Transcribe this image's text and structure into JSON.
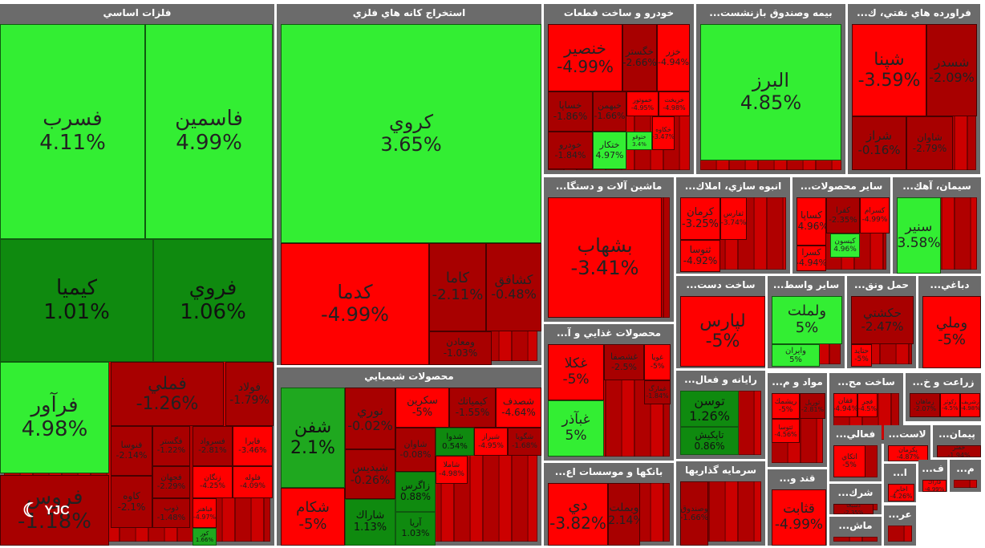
{
  "chart_data": {
    "type": "heatmap",
    "style": "treemap",
    "colors": {
      "strong_positive": "#33ee33",
      "mid_positive": "#1fa81f",
      "weak_positive": "#0f8a0f",
      "weak_negative": "#a80000",
      "strong_negative": "#ff0000",
      "sector_header": "#6b6b6b"
    },
    "sectors": [
      {
        "title": "فلزات اساسي",
        "stocks": [
          {
            "symbol": "فسرب",
            "change": "4.11%",
            "value": 4.11
          },
          {
            "symbol": "فاسمين",
            "change": "4.99%",
            "value": 4.99
          },
          {
            "symbol": "كيميا",
            "change": "1.01%",
            "value": 1.01
          },
          {
            "symbol": "فروي",
            "change": "1.06%",
            "value": 1.06
          },
          {
            "symbol": "فرآور",
            "change": "4.98%",
            "value": 4.98
          },
          {
            "symbol": "فملي",
            "change": "-1.26%",
            "value": -1.26
          },
          {
            "symbol": "فولاد",
            "change": "-1.79%",
            "value": -1.79
          },
          {
            "symbol": "فروس",
            "change": "-1.18%",
            "value": -1.18
          },
          {
            "symbol": "فنوسا",
            "change": "-2.14%",
            "value": -2.14
          },
          {
            "symbol": "فگستر",
            "change": "-1.22%",
            "value": -1.22
          },
          {
            "symbol": "فسرواد",
            "change": "-2.81%",
            "value": -2.81
          },
          {
            "symbol": "فايرا",
            "change": "-3.46%",
            "value": -3.46
          },
          {
            "symbol": "فجهان",
            "change": "-2.29%",
            "value": -2.29
          },
          {
            "symbol": "زنگان",
            "change": "-4.25%",
            "value": -4.25
          },
          {
            "symbol": "فلوله",
            "change": "-4.09%",
            "value": -4.09
          },
          {
            "symbol": "كاوه",
            "change": "-2.1%",
            "value": -2.1
          },
          {
            "symbol": "ذوب",
            "change": "-1.48%",
            "value": -1.48
          },
          {
            "symbol": "فباهنر",
            "change": "-4.97%",
            "value": -4.97
          },
          {
            "symbol": "كور",
            "change": "1.66%",
            "value": 1.66
          }
        ]
      },
      {
        "title": "استخراج كانه هاي فلزي",
        "stocks": [
          {
            "symbol": "كروي",
            "change": "3.65%",
            "value": 3.65
          },
          {
            "symbol": "كدما",
            "change": "-4.99%",
            "value": -4.99
          },
          {
            "symbol": "كاما",
            "change": "-2.11%",
            "value": -2.11
          },
          {
            "symbol": "كشافق",
            "change": "-0.48%",
            "value": -0.48
          },
          {
            "symbol": "ومعادن",
            "change": "-1.03%",
            "value": -1.03
          }
        ]
      },
      {
        "title": "محصولات شيميايي",
        "stocks": [
          {
            "symbol": "شفن",
            "change": "2.1%",
            "value": 2.1
          },
          {
            "symbol": "شكام",
            "change": "-5%",
            "value": -5
          },
          {
            "symbol": "نوري",
            "change": "-0.02%",
            "value": -0.02
          },
          {
            "symbol": "شپديس",
            "change": "-0.26%",
            "value": -0.26
          },
          {
            "symbol": "شاراك",
            "change": "1.13%",
            "value": 1.13
          },
          {
            "symbol": "سكرين",
            "change": "-5%",
            "value": -5
          },
          {
            "symbol": "كيمياتك",
            "change": "-1.55%",
            "value": -1.55
          },
          {
            "symbol": "شصدف",
            "change": "-4.64%",
            "value": -4.64
          },
          {
            "symbol": "شاوان",
            "change": "-0.08%",
            "value": -0.08
          },
          {
            "symbol": "شدوا",
            "change": "0.54%",
            "value": 0.54
          },
          {
            "symbol": "شيراز",
            "change": "-4.95%",
            "value": -4.95
          },
          {
            "symbol": "شگویا",
            "change": "-1.68%",
            "value": -1.68
          },
          {
            "symbol": "زاگرس",
            "change": "0.88%",
            "value": 0.88
          },
          {
            "symbol": "شاملا",
            "change": "-4.98%",
            "value": -4.98
          },
          {
            "symbol": "آريا",
            "change": "1.03%",
            "value": 1.03
          }
        ]
      },
      {
        "title": "خودرو و ساخت قطعات",
        "stocks": [
          {
            "symbol": "خنصير",
            "change": "-4.99%",
            "value": -4.99
          },
          {
            "symbol": "خگستر",
            "change": "-2.66%",
            "value": -2.66
          },
          {
            "symbol": "خزر",
            "change": "-4.94%",
            "value": -4.94
          },
          {
            "symbol": "خساپا",
            "change": "-1.86%",
            "value": -1.86
          },
          {
            "symbol": "خبهمن",
            "change": "-1.66%",
            "value": -1.66
          },
          {
            "symbol": "خموتور",
            "change": "-4.95%",
            "value": -4.95
          },
          {
            "symbol": "خريخت",
            "change": "-4.98%",
            "value": -4.98
          },
          {
            "symbol": "خودرو",
            "change": "-1.84%",
            "value": -1.84
          },
          {
            "symbol": "ختكار",
            "change": "4.97%",
            "value": 4.97
          },
          {
            "symbol": "ختوقو",
            "change": "3.4%",
            "value": 3.4
          },
          {
            "symbol": "خكاوه",
            "change": "-3.47%",
            "value": -3.47
          }
        ]
      },
      {
        "title": "بيمه وصندوق بازنشست...",
        "stocks": [
          {
            "symbol": "البرز",
            "change": "4.85%",
            "value": 4.85
          }
        ]
      },
      {
        "title": "فراورده هاي نفتي، ك...",
        "stocks": [
          {
            "symbol": "شپنا",
            "change": "-3.59%",
            "value": -3.59
          },
          {
            "symbol": "شسدر",
            "change": "-2.09%",
            "value": -2.09
          },
          {
            "symbol": "شراز",
            "change": "-0.16%",
            "value": -0.16
          },
          {
            "symbol": "شاوان",
            "change": "-2.79%",
            "value": -2.79
          }
        ]
      },
      {
        "title": "ماشين آلات و دستگا...",
        "stocks": [
          {
            "symbol": "بشهاب",
            "change": "-3.41%",
            "value": -3.41
          }
        ]
      },
      {
        "title": "انبوه سازي، املاك...",
        "stocks": [
          {
            "symbol": "كرمان",
            "change": "-3.25%",
            "value": -3.25
          },
          {
            "symbol": "ثفارس",
            "change": "-3.74%",
            "value": -3.74
          },
          {
            "symbol": "ثنوسا",
            "change": "-4.92%",
            "value": -4.92
          }
        ]
      },
      {
        "title": "ساير محصولات...",
        "stocks": [
          {
            "symbol": "كساپا",
            "change": "-4.96%",
            "value": -4.96
          },
          {
            "symbol": "كفرا",
            "change": "-2.35%",
            "value": -2.35
          },
          {
            "symbol": "كسرام",
            "change": "-4.99%",
            "value": -4.99
          },
          {
            "symbol": "كيسون",
            "change": "4.96%",
            "value": 4.96
          },
          {
            "symbol": "كسرا",
            "change": "-4.94%",
            "value": -4.94
          }
        ]
      },
      {
        "title": "سيمان، آهك...",
        "stocks": [
          {
            "symbol": "سنير",
            "change": "3.58%",
            "value": 3.58
          }
        ]
      },
      {
        "title": "ساخت دست...",
        "stocks": [
          {
            "symbol": "لپارس",
            "change": "-5%",
            "value": -5
          }
        ]
      },
      {
        "title": "ساير واسط...",
        "stocks": [
          {
            "symbol": "ولملت",
            "change": "5%",
            "value": 5
          },
          {
            "symbol": "وايران",
            "change": "5%",
            "value": 5
          }
        ]
      },
      {
        "title": "حمل ونق...",
        "stocks": [
          {
            "symbol": "حكشتي",
            "change": "-2.47%",
            "value": -2.47
          },
          {
            "symbol": "حتاید",
            "change": "-5%",
            "value": -5
          }
        ]
      },
      {
        "title": "دباغي...",
        "stocks": [
          {
            "symbol": "وملي",
            "change": "-5%",
            "value": -5
          }
        ]
      },
      {
        "title": "محصولات غذايي و آ...",
        "stocks": [
          {
            "symbol": "غكلا",
            "change": "-5%",
            "value": -5
          },
          {
            "symbol": "غشصفا",
            "change": "-2.5%",
            "value": -2.5
          },
          {
            "symbol": "غویا",
            "change": "-5%",
            "value": -5
          },
          {
            "symbol": "غبآذر",
            "change": "5%",
            "value": 5
          },
          {
            "symbol": "غمارگ",
            "change": "-1.84%",
            "value": -1.84
          }
        ]
      },
      {
        "title": "رايانه و فعال...",
        "stocks": [
          {
            "symbol": "توسن",
            "change": "1.26%",
            "value": 1.26
          },
          {
            "symbol": "تاپكيش",
            "change": "0.86%",
            "value": 0.86
          }
        ]
      },
      {
        "title": "مواد و م...",
        "stocks": [
          {
            "symbol": "ريشمك",
            "change": "-5%",
            "value": -5
          },
          {
            "symbol": "ثوريل",
            "change": "-2.81%",
            "value": -2.81
          },
          {
            "symbol": "ثتوسا",
            "change": "-4.56%",
            "value": -4.56
          }
        ]
      },
      {
        "title": "ساخت مح...",
        "stocks": [
          {
            "symbol": "فقان",
            "change": "-4.94%",
            "value": -4.94
          },
          {
            "symbol": "فجر",
            "change": "-4.5%",
            "value": -4.5
          }
        ]
      },
      {
        "title": "زراعت و خ...",
        "stocks": [
          {
            "symbol": "زماهان",
            "change": "-2.07%",
            "value": -2.07
          },
          {
            "symbol": "زكوثر",
            "change": "-4.5%",
            "value": -4.5
          },
          {
            "symbol": "زشريف",
            "change": "-4.98%",
            "value": -4.98
          }
        ]
      },
      {
        "title": "بانكها و موسسات اع...",
        "stocks": [
          {
            "symbol": "دي",
            "change": "-3.82%",
            "value": -3.82
          },
          {
            "symbol": "وبملت",
            "change": "-2.14%",
            "value": -2.14
          }
        ]
      },
      {
        "title": "سرمايه گذاريها",
        "stocks": [
          {
            "symbol": "وصندوق",
            "change": "-1.66%",
            "value": -1.66
          }
        ]
      },
      {
        "title": "قند و...",
        "stocks": [
          {
            "symbol": "قثابت",
            "change": "-4.99%",
            "value": -4.99
          }
        ]
      },
      {
        "title": "فعالي...",
        "stocks": [
          {
            "symbol": "اتكاي",
            "change": "-5%",
            "value": -5
          }
        ]
      },
      {
        "title": "لاست...",
        "stocks": [
          {
            "symbol": "پکرمان",
            "change": "-4.87%",
            "value": -4.87
          }
        ]
      },
      {
        "title": "پيمان...",
        "stocks": [
          {
            "symbol": "خفنر",
            "change": "-1.94%",
            "value": -1.94
          }
        ]
      },
      {
        "title": "شرك...",
        "stocks": [
          {
            "symbol": "دسبحا",
            "change": "-2.35%",
            "value": -2.35
          }
        ]
      },
      {
        "title": "ماش...",
        "stocks": []
      },
      {
        "title": "عر...",
        "stocks": []
      },
      {
        "title": "ا...",
        "stocks": [
          {
            "symbol": "اخابر",
            "change": "-4.26%",
            "value": -4.26
          }
        ]
      },
      {
        "title": "ف...",
        "stocks": [
          {
            "symbol": "فاراك",
            "change": "-4.99%",
            "value": -4.99
          }
        ]
      },
      {
        "title": "م...",
        "stocks": []
      }
    ]
  },
  "watermark": {
    "logo": "yjc-logo",
    "text": "YJC"
  }
}
